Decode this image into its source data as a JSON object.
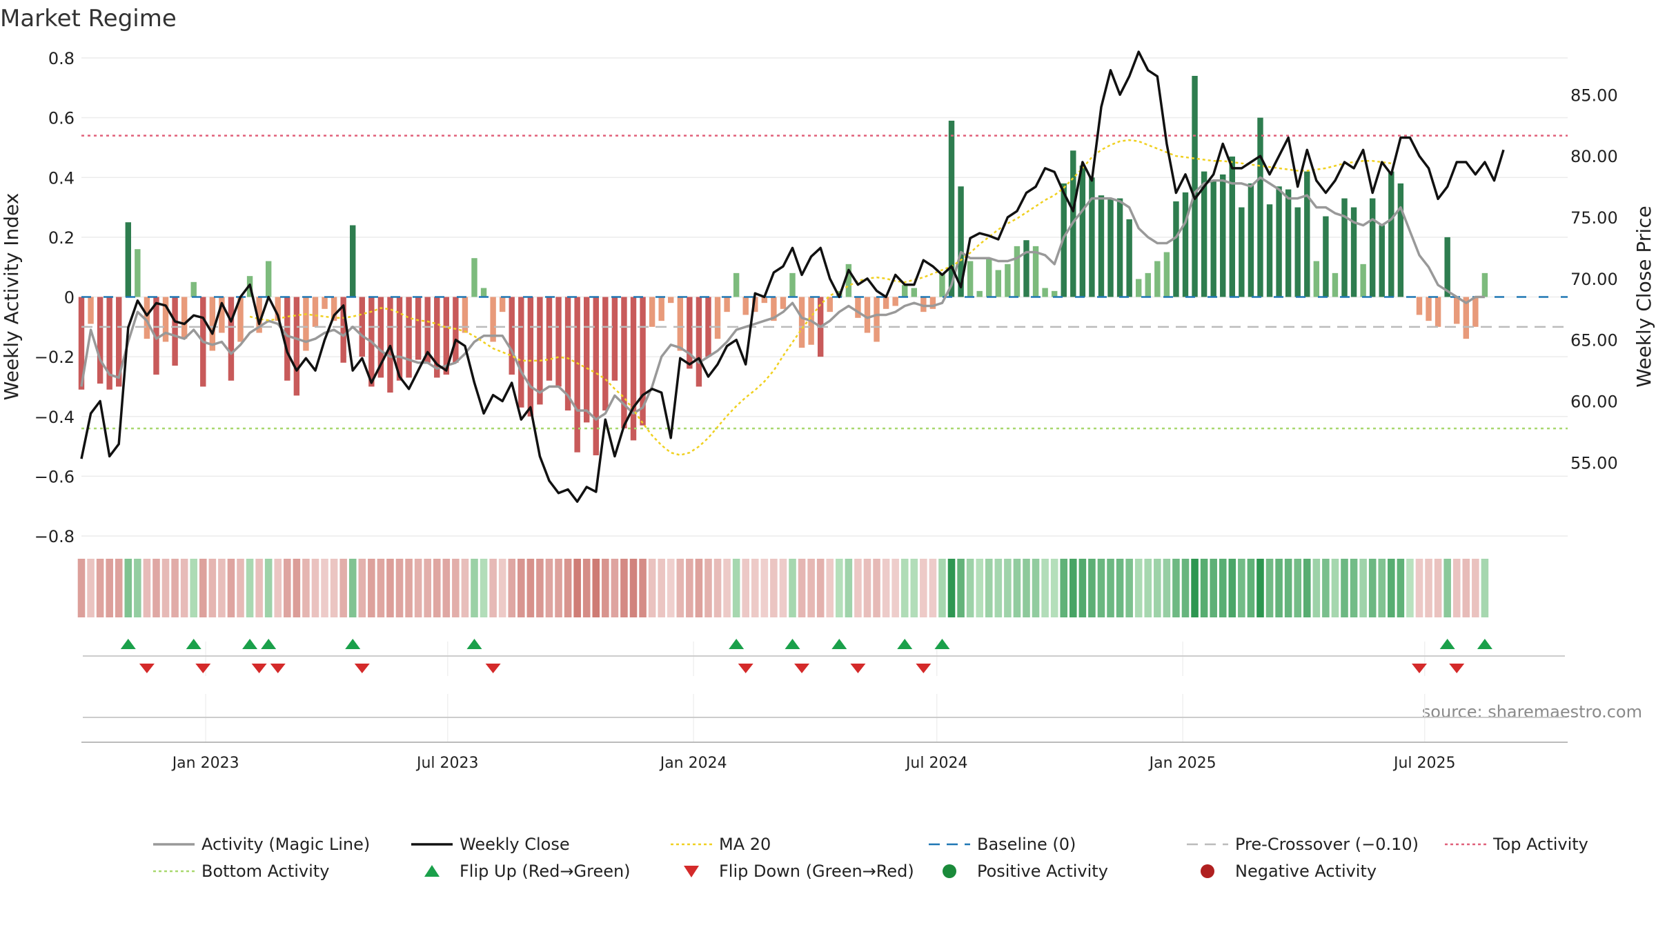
{
  "title": "Market Regime",
  "source": "source: sharemaestro.com",
  "colors": {
    "bar_green_dark": "#2e7d4f",
    "bar_green_light": "#7dbb7d",
    "bar_red_dark": "#c85a5a",
    "bar_red_light": "#e89a7a",
    "activity_line": "#999999",
    "close_line": "#111111",
    "ma20": "#f0d020",
    "baseline": "#1f77b4",
    "pre_crossover": "#bbbbbb",
    "top_activity": "#e0607a",
    "bottom_activity": "#a8d86e",
    "flip_up": "#1aa04a",
    "flip_down": "#d42a2a",
    "positive": "#1a8a3a",
    "negative": "#b02020"
  },
  "chart_data": {
    "type": "bar",
    "x_start": "2022-09-30",
    "x_step_days": 7,
    "x_range": [
      "2022-09-30",
      "2025-10-16"
    ],
    "xticks": [
      "Jan 2023",
      "Jul 2023",
      "Jan 2024",
      "Jul 2024",
      "Jan 2025",
      "Jul 2025"
    ],
    "xtick_dates": [
      "2023-01-01",
      "2023-07-01",
      "2024-01-01",
      "2024-07-01",
      "2025-01-01",
      "2025-07-01"
    ],
    "ylabel_left": "Weekly Activity Index",
    "ylabel_right": "Weekly Close Price",
    "ylim_left": [
      -0.8,
      0.8
    ],
    "yticks_left": [
      "0.8",
      "0.6",
      "0.4",
      "0.2",
      "0",
      "−0.2",
      "−0.4",
      "−0.6",
      "−0.8"
    ],
    "ylim_right": [
      49,
      88
    ],
    "yticks_right": [
      "85.00",
      "80.00",
      "75.00",
      "70.00",
      "65.00",
      "60.00",
      "55.00"
    ],
    "top_activity": 0.54,
    "bottom_activity": -0.44,
    "pre_crossover": -0.1,
    "baseline": 0,
    "activity": [
      -0.31,
      -0.09,
      -0.29,
      -0.31,
      -0.3,
      0.25,
      0.16,
      -0.14,
      -0.26,
      -0.15,
      -0.23,
      -0.14,
      0.05,
      -0.3,
      -0.18,
      -0.12,
      -0.28,
      -0.15,
      0.07,
      -0.12,
      0.12,
      -0.08,
      -0.28,
      -0.33,
      -0.18,
      -0.1,
      -0.04,
      -0.08,
      -0.22,
      0.24,
      -0.2,
      -0.3,
      -0.27,
      -0.32,
      -0.28,
      -0.27,
      -0.21,
      -0.22,
      -0.27,
      -0.26,
      -0.22,
      -0.12,
      0.13,
      0.03,
      -0.15,
      -0.05,
      -0.26,
      -0.37,
      -0.4,
      -0.36,
      -0.28,
      -0.3,
      -0.38,
      -0.52,
      -0.42,
      -0.53,
      -0.38,
      -0.28,
      -0.44,
      -0.48,
      -0.43,
      -0.1,
      -0.08,
      -0.02,
      -0.18,
      -0.24,
      -0.3,
      -0.2,
      -0.14,
      -0.05,
      0.08,
      -0.06,
      -0.05,
      -0.02,
      -0.08,
      -0.04,
      0.08,
      -0.17,
      -0.16,
      -0.2,
      -0.05,
      0.02,
      0.11,
      -0.07,
      -0.12,
      -0.15,
      -0.04,
      -0.03,
      0.04,
      0.03,
      -0.05,
      -0.04,
      0.08,
      0.59,
      0.37,
      0.12,
      0.02,
      0.13,
      0.09,
      0.11,
      0.17,
      0.19,
      0.17,
      0.03,
      0.02,
      0.38,
      0.49,
      0.44,
      0.4,
      0.34,
      0.33,
      0.33,
      0.26,
      0.06,
      0.08,
      0.12,
      0.15,
      0.32,
      0.35,
      0.74,
      0.42,
      0.39,
      0.41,
      0.47,
      0.3,
      0.38,
      0.6,
      0.31,
      0.37,
      0.36,
      0.3,
      0.42,
      0.12,
      0.27,
      0.08,
      0.33,
      0.3,
      0.11,
      0.33,
      0.24,
      0.42,
      0.38,
      0.0,
      -0.06,
      -0.08,
      -0.1,
      0.2,
      -0.09,
      -0.14,
      -0.1,
      0.08
    ],
    "activity_line": [
      -0.3,
      -0.11,
      -0.21,
      -0.26,
      -0.27,
      -0.15,
      -0.05,
      -0.08,
      -0.14,
      -0.12,
      -0.13,
      -0.14,
      -0.11,
      -0.15,
      -0.16,
      -0.15,
      -0.19,
      -0.16,
      -0.12,
      -0.1,
      -0.08,
      -0.09,
      -0.13,
      -0.14,
      -0.15,
      -0.14,
      -0.12,
      -0.11,
      -0.13,
      -0.1,
      -0.13,
      -0.15,
      -0.18,
      -0.2,
      -0.2,
      -0.21,
      -0.22,
      -0.22,
      -0.24,
      -0.23,
      -0.22,
      -0.19,
      -0.15,
      -0.13,
      -0.13,
      -0.13,
      -0.18,
      -0.25,
      -0.3,
      -0.32,
      -0.3,
      -0.3,
      -0.33,
      -0.38,
      -0.38,
      -0.41,
      -0.39,
      -0.33,
      -0.36,
      -0.39,
      -0.37,
      -0.3,
      -0.2,
      -0.16,
      -0.17,
      -0.19,
      -0.22,
      -0.2,
      -0.18,
      -0.15,
      -0.11,
      -0.1,
      -0.09,
      -0.08,
      -0.07,
      -0.05,
      -0.02,
      -0.07,
      -0.08,
      -0.1,
      -0.08,
      -0.05,
      -0.03,
      -0.05,
      -0.07,
      -0.06,
      -0.06,
      -0.05,
      -0.03,
      -0.02,
      -0.03,
      -0.03,
      -0.02,
      0.04,
      0.15,
      0.13,
      0.13,
      0.13,
      0.12,
      0.12,
      0.13,
      0.15,
      0.15,
      0.14,
      0.11,
      0.2,
      0.25,
      0.29,
      0.33,
      0.33,
      0.33,
      0.32,
      0.3,
      0.23,
      0.2,
      0.18,
      0.18,
      0.2,
      0.25,
      0.35,
      0.38,
      0.39,
      0.39,
      0.38,
      0.38,
      0.37,
      0.4,
      0.38,
      0.36,
      0.33,
      0.33,
      0.34,
      0.3,
      0.3,
      0.28,
      0.27,
      0.25,
      0.24,
      0.26,
      0.24,
      0.26,
      0.3,
      0.22,
      0.14,
      0.1,
      0.04,
      0.02,
      0.0,
      -0.02,
      0.0,
      0.0
    ],
    "close": [
      55.3,
      59.0,
      60.0,
      55.5,
      56.5,
      66.0,
      68.2,
      67.0,
      68.0,
      67.8,
      66.5,
      66.3,
      67.0,
      66.8,
      65.5,
      68.0,
      66.5,
      68.5,
      69.5,
      66.3,
      68.5,
      67.0,
      64.0,
      62.5,
      63.5,
      62.5,
      65.0,
      67.0,
      67.8,
      62.5,
      63.5,
      61.5,
      63.0,
      64.5,
      62.0,
      61.0,
      62.5,
      64.0,
      63.0,
      62.5,
      65.0,
      64.5,
      61.5,
      59.0,
      60.5,
      60.0,
      61.5,
      58.5,
      59.5,
      55.5,
      53.5,
      52.5,
      52.8,
      51.8,
      53.0,
      52.6,
      58.5,
      55.5,
      58.0,
      59.5,
      60.5,
      61.0,
      60.7,
      57.0,
      63.5,
      63.0,
      63.5,
      62.0,
      63.0,
      64.5,
      65.0,
      63.0,
      68.8,
      68.5,
      70.5,
      71.0,
      72.5,
      70.3,
      71.8,
      72.5,
      70.0,
      68.5,
      70.7,
      69.5,
      70.0,
      69.0,
      68.5,
      70.3,
      69.5,
      69.5,
      71.5,
      71.0,
      70.3,
      71.0,
      69.3,
      73.3,
      73.7,
      73.5,
      73.2,
      75.0,
      75.5,
      77.0,
      77.5,
      79.0,
      78.7,
      77.0,
      75.5,
      79.5,
      78.0,
      84.0,
      87.0,
      85.0,
      86.5,
      88.5,
      87.0,
      86.5,
      81.0,
      77.0,
      78.5,
      76.5,
      77.5,
      78.5,
      81.0,
      79.0,
      79.0,
      79.5,
      80.0,
      78.5,
      80.0,
      81.5,
      77.5,
      80.5,
      78.0,
      77.0,
      78.0,
      79.5,
      79.0,
      80.5,
      77.0,
      79.5,
      78.5,
      81.5,
      81.5,
      80.0,
      79.0,
      76.5,
      77.5,
      79.5,
      79.5,
      78.5,
      79.5,
      78.0,
      80.5
    ],
    "ma20": [
      66.9,
      66.7,
      66.6,
      66.7,
      66.9,
      67.0,
      67.1,
      67.0,
      66.9,
      66.8,
      66.8,
      66.9,
      67.1,
      67.3,
      67.6,
      67.5,
      67.2,
      66.8,
      66.6,
      66.5,
      66.3,
      66.0,
      65.9,
      65.7,
      65.3,
      64.8,
      64.3,
      64.0,
      63.7,
      63.3,
      63.3,
      63.3,
      63.4,
      63.6,
      63.5,
      63.1,
      62.7,
      62.3,
      61.8,
      61.0,
      60.3,
      59.3,
      58.2,
      57.2,
      56.4,
      55.8,
      55.6,
      55.8,
      56.3,
      57.0,
      57.9,
      58.8,
      59.6,
      60.3,
      60.9,
      61.6,
      62.5,
      63.7,
      64.8,
      65.9,
      66.9,
      67.9,
      68.6,
      69.0,
      69.4,
      69.8,
      70.0,
      70.1,
      70.0,
      69.8,
      69.7,
      69.9,
      70.1,
      70.4,
      70.7,
      71.0,
      71.5,
      72.1,
      72.8,
      73.4,
      74.0,
      74.5,
      74.9,
      75.4,
      75.9,
      76.4,
      76.8,
      77.4,
      78.2,
      79.0,
      79.9,
      80.5,
      80.9,
      81.2,
      81.3,
      81.2,
      80.9,
      80.6,
      80.3,
      80.0,
      79.9,
      79.8,
      79.7,
      79.6,
      79.6,
      79.5,
      79.4,
      79.3,
      79.2,
      79.1,
      79.0,
      78.9,
      78.8,
      78.8,
      78.9,
      79.0,
      79.2,
      79.4,
      79.5,
      79.6,
      79.6,
      79.5,
      79.4
    ]
  },
  "legend": [
    {
      "label": "Activity (Magic Line)",
      "kind": "solid-line",
      "color_key": "activity_line"
    },
    {
      "label": "Weekly Close",
      "kind": "solid-line",
      "color_key": "close_line"
    },
    {
      "label": "MA 20",
      "kind": "dotted-line",
      "color_key": "ma20"
    },
    {
      "label": "Baseline (0)",
      "kind": "dashed-line",
      "color_key": "baseline"
    },
    {
      "label": "Pre-Crossover (−0.10)",
      "kind": "dashed-line",
      "color_key": "pre_crossover"
    },
    {
      "label": "Top Activity",
      "kind": "dotted-line",
      "color_key": "top_activity"
    },
    {
      "label": "Bottom Activity",
      "kind": "dotted-line",
      "color_key": "bottom_activity"
    },
    {
      "label": "Flip Up (Red→Green)",
      "kind": "triangle-up",
      "color_key": "flip_up"
    },
    {
      "label": "Flip Down (Green→Red)",
      "kind": "triangle-down",
      "color_key": "flip_down"
    },
    {
      "label": "Positive Activity",
      "kind": "dot",
      "color_key": "positive"
    },
    {
      "label": "Negative Activity",
      "kind": "dot",
      "color_key": "negative"
    }
  ]
}
